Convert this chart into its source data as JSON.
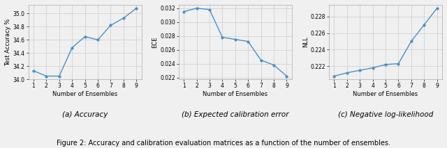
{
  "x": [
    1,
    2,
    3,
    4,
    5,
    6,
    7,
    8,
    9
  ],
  "accuracy": [
    34.13,
    34.05,
    34.05,
    34.48,
    34.65,
    34.6,
    34.82,
    34.93,
    35.08
  ],
  "ece": [
    0.0315,
    0.032,
    0.0318,
    0.0278,
    0.0275,
    0.0272,
    0.0245,
    0.0238,
    0.0222
  ],
  "nll": [
    0.2208,
    0.2212,
    0.2215,
    0.2218,
    0.2222,
    0.2223,
    0.225,
    0.227,
    0.229
  ],
  "line_color": "#4a90c4",
  "marker": "o",
  "markersize": 2.5,
  "linewidth": 1.0,
  "xlabel_accuracy": "Number of Ensembles",
  "xlabel_ece": "Number of Ensembles",
  "xlabel_nll": "Number of Ensembles",
  "ylabel_accuracy": "Test Accuracy %",
  "ylabel_ece": "ECE",
  "ylabel_nll": "NLL",
  "caption_a": "(a) Accuracy",
  "caption_b": "(b) Expected calibration error",
  "caption_c": "(c) Negative log-likelihood",
  "fig_caption": "Figure 2: Accuracy and calibration evaluation matrices as a function of the number of ensembles.",
  "grid_color": "#cccccc",
  "bg_color": "#f0f0f0",
  "caption_fontsize": 7,
  "tick_fontsize": 5.5,
  "label_fontsize": 6,
  "sub_caption_fontsize": 7.5
}
